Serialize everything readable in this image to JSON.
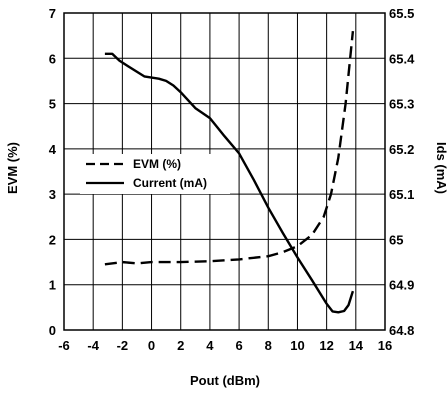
{
  "chart_data": {
    "type": "line",
    "title": "",
    "xlabel": "Pout (dBm)",
    "ylabel": "EVM (%)",
    "y2label": "Ids (mA)",
    "xlim": [
      -6,
      16
    ],
    "ylim": [
      0,
      7
    ],
    "y2lim": [
      64.8,
      65.5
    ],
    "xticks": [
      "-6",
      "-4",
      "-2",
      "0",
      "2",
      "4",
      "6",
      "8",
      "10",
      "12",
      "14",
      "16"
    ],
    "yticks": [
      "0",
      "1",
      "2",
      "3",
      "4",
      "5",
      "6",
      "7"
    ],
    "y2ticks": [
      "64.8",
      "64.9",
      "65",
      "65.1",
      "65.2",
      "65.3",
      "65.4",
      "65.5"
    ],
    "grid": true,
    "legend_position": "center-left",
    "series": [
      {
        "name": "EVM (%)",
        "axis": "left",
        "style": "dashed",
        "color": "#000000",
        "x": [
          -3.2,
          -2.0,
          -1.0,
          0.0,
          2.0,
          4.0,
          6.0,
          8.0,
          9.0,
          10.0,
          11.0,
          11.8,
          12.3,
          12.8,
          13.3,
          13.8
        ],
        "y": [
          1.45,
          1.5,
          1.47,
          1.5,
          1.5,
          1.52,
          1.56,
          1.63,
          1.72,
          1.85,
          2.1,
          2.5,
          3.0,
          3.8,
          5.0,
          6.6
        ]
      },
      {
        "name": "Current (mA)",
        "axis": "right",
        "style": "solid",
        "color": "#000000",
        "x": [
          -3.2,
          -2.7,
          -2.2,
          -1.5,
          -0.5,
          0.5,
          1.0,
          1.5,
          2.0,
          3.0,
          4.0,
          5.0,
          6.0,
          7.0,
          8.0,
          9.0,
          10.0,
          11.0,
          12.0,
          12.4,
          12.8,
          13.2,
          13.5,
          13.8
        ],
        "y": [
          65.41,
          65.41,
          65.395,
          65.38,
          65.36,
          65.355,
          65.35,
          65.34,
          65.325,
          65.29,
          65.268,
          65.228,
          65.19,
          65.132,
          65.07,
          65.014,
          64.96,
          64.91,
          64.858,
          64.841,
          64.839,
          64.842,
          64.855,
          64.886
        ]
      }
    ]
  }
}
